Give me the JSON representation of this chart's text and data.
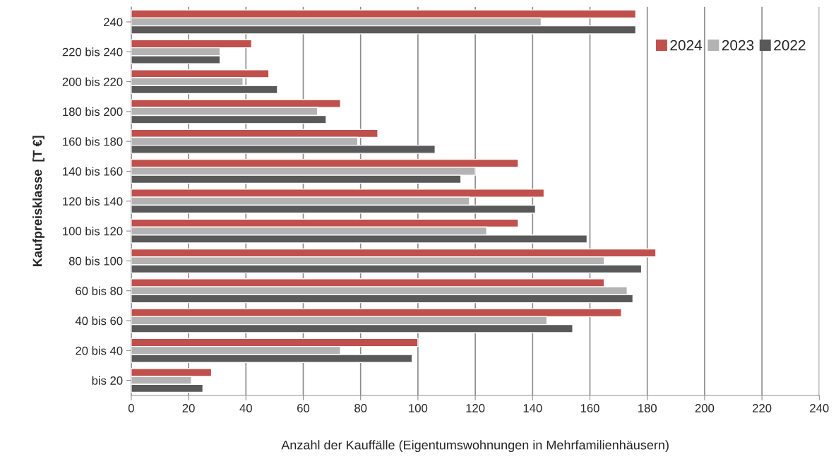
{
  "chart_data": {
    "type": "bar",
    "orientation": "horizontal",
    "categories": [
      "240",
      "220 bis 240",
      "200 bis 220",
      "180 bis 200",
      "160 bis 180",
      "140 bis 160",
      "120 bis 140",
      "100 bis 120",
      "80 bis 100",
      "60 bis 80",
      "40 bis 60",
      "20 bis 40",
      "bis 20"
    ],
    "series": [
      {
        "name": "2024",
        "color": "#c0504d",
        "values": [
          176,
          42,
          48,
          73,
          86,
          135,
          144,
          135,
          183,
          165,
          171,
          100,
          28
        ]
      },
      {
        "name": "2023",
        "color": "#b3b3b3",
        "values": [
          143,
          31,
          39,
          65,
          79,
          120,
          118,
          124,
          165,
          173,
          145,
          73,
          21
        ]
      },
      {
        "name": "2022",
        "color": "#595959",
        "values": [
          176,
          31,
          51,
          68,
          106,
          115,
          141,
          159,
          178,
          175,
          154,
          98,
          25
        ]
      }
    ],
    "xlabel": "Anzahl der Kauffälle (Eigentumswohnungen in Mehrfamilienhäusern)",
    "ylabel": "Kaufpreisklasse  [T €]",
    "xlim": [
      0,
      240
    ],
    "xticks": [
      0,
      20,
      40,
      60,
      80,
      100,
      120,
      140,
      160,
      180,
      200,
      220,
      240
    ],
    "grid": "x",
    "legend": "top right"
  }
}
